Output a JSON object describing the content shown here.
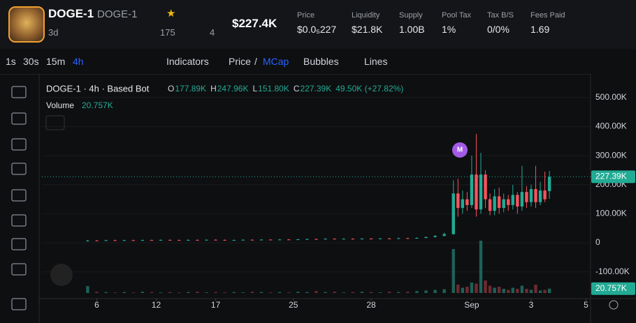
{
  "header": {
    "token_name": "DOGE-1",
    "token_symbol": "DOGE-1",
    "age": "3d",
    "x_count": "175",
    "watchers": "4",
    "market_cap": "$227.4K",
    "stats": [
      {
        "label": "Price",
        "value": "$0.0₅227"
      },
      {
        "label": "Liquidity",
        "value": "$21.8K"
      },
      {
        "label": "Supply",
        "value": "1.00B"
      },
      {
        "label": "Pool Tax",
        "value": "1%"
      },
      {
        "label": "Tax B/S",
        "value": "0/0%"
      },
      {
        "label": "Fees Paid",
        "value": "1.69"
      }
    ]
  },
  "toolbar": {
    "intervals": [
      "1s",
      "30s",
      "15m",
      "4h"
    ],
    "indicators": "Indicators",
    "price_mcap": [
      "Price",
      "/",
      "MCap"
    ],
    "bubbles": "Bubbles",
    "lines": "Lines"
  },
  "chart_data": {
    "type": "candlestick",
    "title": "DOGE-1 · 4h · Based Bot",
    "ohlc_legend": [
      {
        "key": "O",
        "value": "177.89K"
      },
      {
        "key": "H",
        "value": "247.96K"
      },
      {
        "key": "L",
        "value": "151.80K"
      },
      {
        "key": "C",
        "value": "227.39K"
      }
    ],
    "change": "49.50K (+27.82%)",
    "volume_label": "Volume",
    "volume_value": "20.757K",
    "marker": "M",
    "up_color": "#22ab94",
    "down_color": "#f7525f",
    "volume_up_color": "#1d6158",
    "volume_down_color": "#6e2a31",
    "ylim": [
      -192000,
      567000
    ],
    "yticks": [
      {
        "value": 500000,
        "label": "500.00K"
      },
      {
        "value": 400000,
        "label": "400.00K"
      },
      {
        "value": 300000,
        "label": "300.00K"
      },
      {
        "value": 200000,
        "label": "200.00K"
      },
      {
        "value": 100000,
        "label": "100.00K"
      },
      0,
      {
        "value": -100000,
        "label": "-100.00K"
      }
    ],
    "last_price": {
      "value": 227390,
      "label": "227.39K"
    },
    "volume_ylim": [
      0,
      300000
    ],
    "xlim": [
      -10,
      110
    ],
    "xticks": [
      {
        "value": 2,
        "label": "6"
      },
      {
        "value": 15,
        "label": "12"
      },
      {
        "value": 28,
        "label": "17"
      },
      {
        "value": 45,
        "label": "25"
      },
      {
        "value": 62,
        "label": "28"
      },
      {
        "value": 84,
        "label": "Sep"
      },
      {
        "value": 97,
        "label": "3"
      },
      {
        "value": 109,
        "label": "5"
      }
    ],
    "x": [
      0,
      2,
      4,
      6,
      8,
      10,
      12,
      14,
      16,
      18,
      20,
      22,
      24,
      26,
      28,
      30,
      32,
      34,
      36,
      38,
      40,
      42,
      44,
      46,
      48,
      50,
      52,
      54,
      56,
      58,
      60,
      62,
      64,
      66,
      68,
      70,
      72,
      74,
      76,
      78,
      80,
      81,
      82,
      83,
      84,
      85,
      86,
      87,
      88,
      89,
      90,
      91,
      92,
      93,
      94,
      95,
      96,
      97,
      98,
      99,
      100,
      101
    ],
    "open": [
      6000,
      8000,
      7500,
      9000,
      8500,
      9000,
      8000,
      9500,
      9000,
      10000,
      9500,
      9000,
      10000,
      9500,
      10500,
      10000,
      9000,
      9500,
      10500,
      10000,
      11000,
      10500,
      11500,
      11000,
      12000,
      13000,
      12500,
      14000,
      13500,
      14000,
      13000,
      14500,
      14000,
      15000,
      14500,
      16000,
      15500,
      17000,
      20000,
      24000,
      30000,
      170000,
      120000,
      150000,
      130000,
      235000,
      115000,
      235000,
      150000,
      110000,
      160000,
      120000,
      150000,
      130000,
      165000,
      125000,
      175000,
      140000,
      185000,
      140000,
      180000,
      177890
    ],
    "high": [
      9500,
      9500,
      10500,
      10500,
      10500,
      10500,
      11000,
      11000,
      11500,
      11500,
      11000,
      11500,
      11500,
      12000,
      12000,
      11500,
      11000,
      12000,
      12000,
      12500,
      12500,
      13000,
      13000,
      13500,
      14500,
      14500,
      15500,
      15500,
      15500,
      15500,
      16000,
      16000,
      16500,
      16500,
      17500,
      17500,
      18500,
      21500,
      26000,
      35000,
      215000,
      220000,
      180000,
      175000,
      300000,
      375000,
      310000,
      250000,
      170000,
      185000,
      190000,
      170000,
      165000,
      200000,
      175000,
      265000,
      195000,
      200000,
      265000,
      210000,
      245000,
      247960
    ],
    "low": [
      4500,
      6000,
      6000,
      7000,
      7000,
      6500,
      6500,
      7500,
      7500,
      8000,
      7500,
      7500,
      8000,
      8000,
      8500,
      7500,
      7500,
      8000,
      8500,
      8500,
      9000,
      9000,
      9500,
      9500,
      10500,
      11000,
      11000,
      12000,
      12000,
      11500,
      11500,
      12500,
      12500,
      13000,
      13000,
      14000,
      14000,
      15500,
      18500,
      22000,
      28000,
      90000,
      100000,
      110000,
      120000,
      90000,
      100000,
      120000,
      95000,
      95000,
      100000,
      105000,
      110000,
      115000,
      100000,
      110000,
      120000,
      125000,
      120000,
      130000,
      140000,
      151800
    ],
    "close": [
      8000,
      7500,
      9000,
      8500,
      9000,
      8000,
      9500,
      9000,
      10000,
      9500,
      9000,
      10000,
      9500,
      10500,
      10000,
      9000,
      9500,
      10500,
      10000,
      11000,
      10500,
      11500,
      11000,
      12000,
      13000,
      12500,
      14000,
      13500,
      14000,
      13000,
      14500,
      14000,
      15000,
      14500,
      16000,
      15500,
      17000,
      20000,
      24000,
      30000,
      170000,
      120000,
      150000,
      130000,
      235000,
      115000,
      235000,
      150000,
      110000,
      160000,
      120000,
      150000,
      130000,
      165000,
      125000,
      175000,
      140000,
      185000,
      140000,
      180000,
      150000,
      227390
    ],
    "volume": [
      33000,
      6000,
      4500,
      3000,
      4500,
      3000,
      6000,
      4500,
      3000,
      4500,
      3000,
      4500,
      6000,
      3000,
      4500,
      3000,
      4500,
      3000,
      6000,
      4500,
      3000,
      4500,
      3000,
      6000,
      4500,
      9000,
      4500,
      6000,
      3000,
      4500,
      6000,
      4500,
      3000,
      6000,
      4500,
      6000,
      9000,
      12000,
      15000,
      18000,
      210000,
      40000,
      25000,
      30000,
      50000,
      45000,
      250000,
      60000,
      35000,
      25000,
      30000,
      20000,
      15000,
      25000,
      20000,
      35000,
      20000,
      15000,
      40000,
      12000,
      15000,
      20757
    ]
  }
}
